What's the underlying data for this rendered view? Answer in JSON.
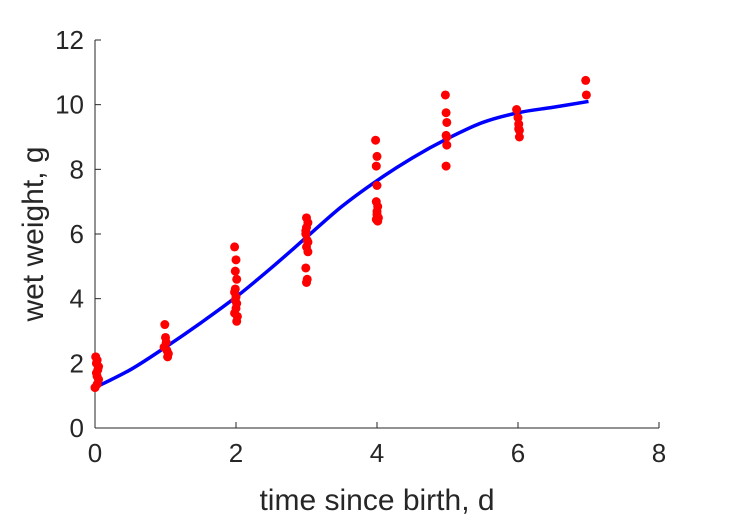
{
  "chart_data": {
    "type": "scatter",
    "title": "",
    "xlabel": "time since birth, d",
    "ylabel": "wet weight, g",
    "xlim": [
      0,
      8
    ],
    "ylim": [
      0,
      12
    ],
    "xticks": [
      0,
      2,
      4,
      6,
      8
    ],
    "yticks": [
      0,
      2,
      4,
      6,
      8,
      10,
      12
    ],
    "grid": false,
    "box": "off",
    "colors": {
      "points": "#ff0000",
      "fit": "#0000ff",
      "axes": "#262626"
    },
    "series": [
      {
        "kind": "points",
        "x": [
          0,
          0.03,
          0.05,
          0.03,
          0.02,
          0.04,
          0.05,
          0.02,
          0.03,
          0.01,
          0.99,
          1.0,
          1.01,
          0.98,
          1.02,
          1.04,
          1.03,
          1.98,
          2.0,
          1.99,
          2.01,
          1.98,
          2.0,
          1.99,
          2.01,
          2.0,
          1.98,
          2.02,
          2.01,
          1.99,
          3.0,
          3.02,
          3.0,
          2.99,
          3.01,
          3.0,
          3.02,
          2.99,
          3.01,
          3.0,
          3.02,
          2.99,
          3.98,
          4.0,
          3.99,
          4.0,
          3.99,
          4.01,
          4.0,
          3.99,
          4.01,
          4.02,
          4.0,
          4.97,
          4.98,
          4.99,
          4.98,
          4.99,
          4.98,
          4.99,
          5.98,
          6.0,
          6.01,
          6.02,
          6.02,
          6.01,
          6.96,
          6.97
        ],
        "y": [
          1.25,
          1.35,
          1.5,
          1.6,
          1.7,
          1.8,
          1.9,
          2.0,
          2.1,
          2.2,
          3.2,
          2.8,
          2.65,
          2.5,
          2.4,
          2.3,
          2.2,
          5.6,
          5.2,
          4.85,
          4.6,
          4.2,
          4.05,
          3.95,
          3.85,
          3.7,
          3.55,
          3.45,
          3.3,
          4.3,
          6.5,
          6.35,
          6.2,
          6.0,
          5.8,
          5.6,
          5.45,
          4.95,
          4.6,
          4.5,
          5.75,
          6.1,
          8.9,
          8.4,
          8.1,
          7.5,
          7.0,
          6.85,
          6.6,
          6.45,
          6.4,
          6.5,
          6.7,
          10.3,
          9.75,
          9.45,
          9.05,
          8.75,
          8.1,
          9.0,
          9.85,
          9.6,
          9.4,
          9.2,
          9.0,
          9.25,
          10.75,
          10.3
        ]
      },
      {
        "kind": "line",
        "x": [
          0,
          0.5,
          1,
          1.5,
          2,
          2.5,
          3,
          3.5,
          4,
          4.5,
          5,
          5.5,
          6,
          6.5,
          7
        ],
        "y": [
          1.25,
          1.8,
          2.5,
          3.25,
          4.05,
          4.95,
          5.9,
          6.85,
          7.65,
          8.35,
          8.95,
          9.45,
          9.75,
          9.92,
          10.1
        ]
      }
    ]
  }
}
